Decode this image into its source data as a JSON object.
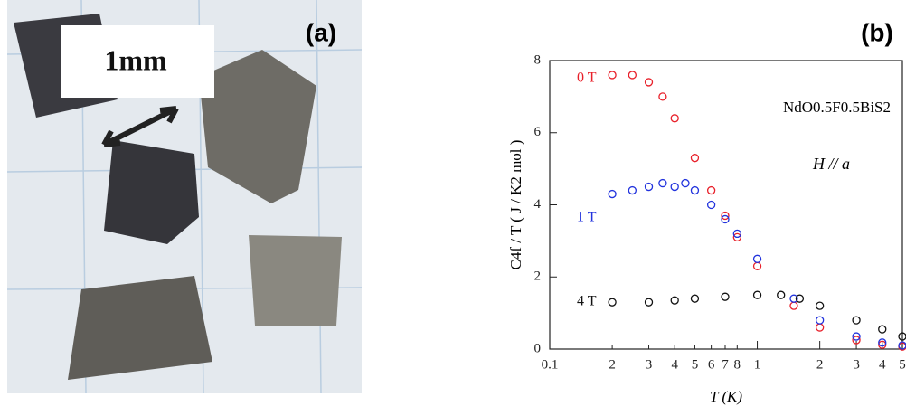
{
  "panel_a": {
    "label": "(a)",
    "scale_label": "1mm"
  },
  "chart_data": {
    "type": "scatter",
    "label": "(b)",
    "x_label": "T (K)",
    "y_label": "C4f / T ( J / K2 mol )",
    "annotations": [
      "NdO0.5F0.5BiS2",
      "H // a"
    ],
    "log_x": true,
    "xlim": [
      0.1,
      5
    ],
    "xticks": [
      0.1,
      {
        "value": 0.2,
        "label": "2"
      },
      {
        "value": 0.3,
        "label": "3"
      },
      {
        "value": 0.4,
        "label": "4"
      },
      {
        "value": 0.5,
        "label": "5"
      },
      {
        "value": 0.6,
        "label": "6"
      },
      {
        "value": 0.7,
        "label": "7"
      },
      {
        "value": 0.8,
        "label": "8"
      },
      1,
      2,
      3,
      4,
      5
    ],
    "ylim": [
      0,
      8
    ],
    "yticks": [
      0,
      2,
      4,
      6,
      8
    ],
    "series": [
      {
        "name": "0 T",
        "color": "#e8202a",
        "x": [
          0.2,
          0.25,
          0.3,
          0.35,
          0.4,
          0.5,
          0.6,
          0.7,
          0.8,
          1,
          1.5,
          2,
          3,
          4,
          5
        ],
        "values": [
          7.6,
          7.6,
          7.4,
          7.0,
          6.4,
          5.3,
          4.4,
          3.7,
          3.1,
          2.3,
          1.2,
          0.6,
          0.25,
          0.12,
          0.07
        ]
      },
      {
        "name": "1 T",
        "color": "#2233dd",
        "x": [
          0.2,
          0.25,
          0.3,
          0.35,
          0.4,
          0.45,
          0.5,
          0.6,
          0.7,
          0.8,
          1,
          1.5,
          2,
          3,
          4,
          5
        ],
        "values": [
          4.3,
          4.4,
          4.5,
          4.6,
          4.5,
          4.6,
          4.4,
          4.0,
          3.6,
          3.2,
          2.5,
          1.4,
          0.8,
          0.35,
          0.18,
          0.1
        ]
      },
      {
        "name": "4 T",
        "color": "#111111",
        "x": [
          0.2,
          0.3,
          0.4,
          0.5,
          0.7,
          1,
          1.3,
          1.6,
          2,
          3,
          4,
          5
        ],
        "values": [
          1.3,
          1.3,
          1.35,
          1.4,
          1.45,
          1.5,
          1.5,
          1.4,
          1.2,
          0.8,
          0.55,
          0.35
        ]
      }
    ]
  }
}
